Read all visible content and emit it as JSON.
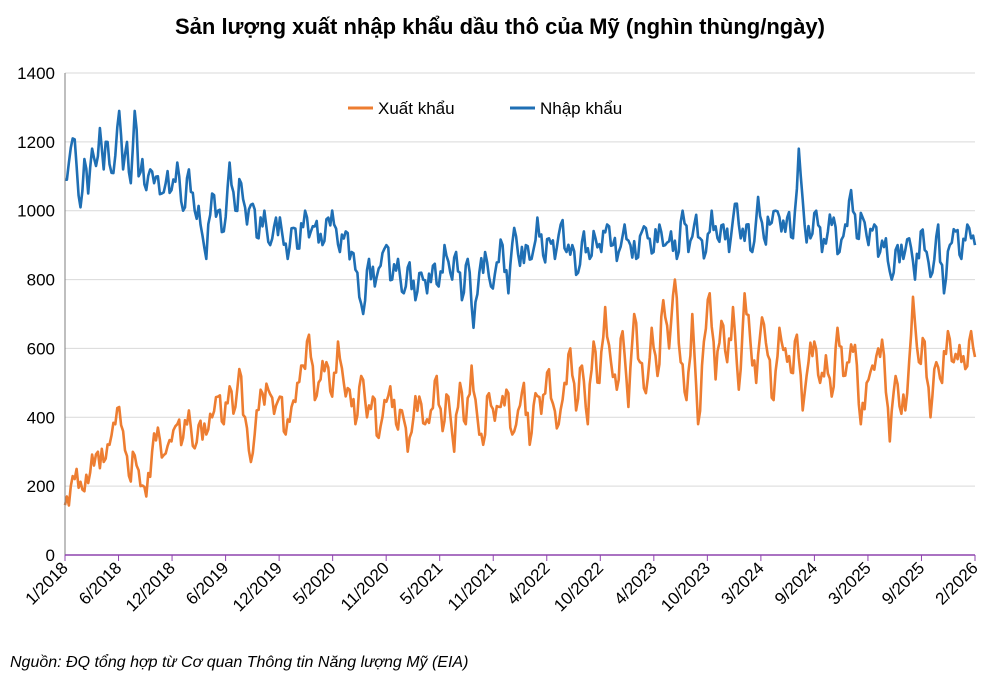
{
  "chart_data": {
    "type": "line",
    "title": "Sản lượng xuất nhập khẩu dầu thô của Mỹ (nghìn thùng/ngày)",
    "xlabel": "",
    "ylabel": "",
    "ylim": [
      0,
      1400
    ],
    "yticks": [
      "0",
      "200",
      "400",
      "600",
      "800",
      "1000",
      "1200",
      "1400"
    ],
    "x_tick_labels": [
      "1/2018",
      "6/2018",
      "12/2018",
      "6/2019",
      "12/2019",
      "5/2020",
      "11/2020",
      "5/2021",
      "11/2021",
      "4/2022",
      "10/2022",
      "4/2023",
      "10/2023",
      "3/2024",
      "9/2024",
      "3/2025",
      "9/2025",
      "2/2026"
    ],
    "grid": "horizontal",
    "legend_position": "top-center",
    "series_anchors": "week index (0 = first week of 1/2018, 423 = first week of 2/2026) paired with value in thousand barrels/day",
    "series": [
      {
        "name": "Xuất khẩu",
        "color": "#ED7D31",
        "anchors": [
          [
            0,
            145
          ],
          [
            3,
            200
          ],
          [
            6,
            250
          ],
          [
            9,
            190
          ],
          [
            13,
            240
          ],
          [
            17,
            300
          ],
          [
            20,
            270
          ],
          [
            23,
            320
          ],
          [
            26,
            380
          ],
          [
            28,
            430
          ],
          [
            30,
            360
          ],
          [
            33,
            230
          ],
          [
            36,
            290
          ],
          [
            39,
            200
          ],
          [
            42,
            170
          ],
          [
            45,
            300
          ],
          [
            48,
            370
          ],
          [
            51,
            290
          ],
          [
            55,
            330
          ],
          [
            58,
            380
          ],
          [
            61,
            340
          ],
          [
            64,
            420
          ],
          [
            67,
            310
          ],
          [
            70,
            390
          ],
          [
            73,
            350
          ],
          [
            76,
            400
          ],
          [
            79,
            460
          ],
          [
            82,
            380
          ],
          [
            85,
            490
          ],
          [
            88,
            430
          ],
          [
            90,
            540
          ],
          [
            93,
            400
          ],
          [
            96,
            270
          ],
          [
            99,
            420
          ],
          [
            102,
            470
          ],
          [
            105,
            480
          ],
          [
            108,
            410
          ],
          [
            111,
            460
          ],
          [
            114,
            350
          ],
          [
            117,
            430
          ],
          [
            120,
            500
          ],
          [
            123,
            550
          ],
          [
            126,
            640
          ],
          [
            129,
            450
          ],
          [
            132,
            510
          ],
          [
            135,
            560
          ],
          [
            138,
            460
          ],
          [
            141,
            620
          ],
          [
            144,
            500
          ],
          [
            147,
            480
          ],
          [
            150,
            380
          ],
          [
            153,
            520
          ],
          [
            156,
            400
          ],
          [
            159,
            460
          ],
          [
            162,
            340
          ],
          [
            165,
            450
          ],
          [
            168,
            490
          ],
          [
            171,
            380
          ],
          [
            174,
            420
          ],
          [
            177,
            300
          ],
          [
            180,
            400
          ],
          [
            183,
            460
          ],
          [
            186,
            380
          ],
          [
            189,
            420
          ],
          [
            192,
            520
          ],
          [
            195,
            360
          ],
          [
            198,
            460
          ],
          [
            201,
            300
          ],
          [
            204,
            500
          ],
          [
            207,
            380
          ],
          [
            210,
            550
          ],
          [
            213,
            400
          ],
          [
            216,
            320
          ],
          [
            219,
            470
          ],
          [
            222,
            390
          ],
          [
            225,
            430
          ],
          [
            228,
            480
          ],
          [
            231,
            350
          ],
          [
            234,
            420
          ],
          [
            237,
            500
          ],
          [
            240,
            320
          ],
          [
            243,
            470
          ],
          [
            246,
            410
          ],
          [
            249,
            530
          ],
          [
            252,
            440
          ],
          [
            255,
            380
          ],
          [
            258,
            500
          ],
          [
            261,
            600
          ],
          [
            264,
            420
          ],
          [
            267,
            550
          ],
          [
            270,
            380
          ],
          [
            273,
            620
          ],
          [
            276,
            500
          ],
          [
            279,
            720
          ],
          [
            282,
            560
          ],
          [
            285,
            480
          ],
          [
            288,
            650
          ],
          [
            291,
            430
          ],
          [
            294,
            700
          ],
          [
            297,
            560
          ],
          [
            300,
            470
          ],
          [
            303,
            660
          ],
          [
            306,
            520
          ],
          [
            309,
            740
          ],
          [
            312,
            600
          ],
          [
            315,
            800
          ],
          [
            318,
            560
          ],
          [
            321,
            450
          ],
          [
            324,
            700
          ],
          [
            327,
            380
          ],
          [
            330,
            620
          ],
          [
            333,
            760
          ],
          [
            336,
            510
          ],
          [
            339,
            680
          ],
          [
            342,
            560
          ],
          [
            345,
            720
          ],
          [
            348,
            480
          ],
          [
            351,
            760
          ],
          [
            354,
            620
          ],
          [
            357,
            500
          ],
          [
            360,
            690
          ],
          [
            363,
            580
          ],
          [
            366,
            450
          ],
          [
            369,
            660
          ],
          [
            372,
            600
          ],
          [
            375,
            530
          ],
          [
            378,
            640
          ],
          [
            381,
            420
          ],
          [
            384,
            560
          ],
          [
            387,
            620
          ],
          [
            390,
            500
          ],
          [
            393,
            580
          ],
          [
            396,
            460
          ],
          [
            399,
            660
          ],
          [
            402,
            520
          ],
          [
            405,
            560
          ],
          [
            408,
            610
          ],
          [
            411,
            380
          ],
          [
            414,
            500
          ],
          [
            417,
            550
          ],
          [
            420,
            600
          ],
          [
            423,
            580
          ],
          [
            426,
            330
          ],
          [
            429,
            520
          ],
          [
            432,
            410
          ],
          [
            435,
            470
          ],
          [
            438,
            750
          ],
          [
            441,
            560
          ],
          [
            444,
            620
          ],
          [
            447,
            400
          ],
          [
            450,
            560
          ],
          [
            453,
            500
          ],
          [
            456,
            650
          ],
          [
            459,
            560
          ],
          [
            462,
            610
          ],
          [
            465,
            540
          ],
          [
            468,
            650
          ],
          [
            470,
            575
          ]
        ]
      },
      {
        "name": "Nhập khẩu",
        "color": "#1F6FB4",
        "anchors": [
          [
            0,
            1090
          ],
          [
            2,
            1140
          ],
          [
            4,
            1210
          ],
          [
            6,
            1130
          ],
          [
            8,
            1010
          ],
          [
            10,
            1150
          ],
          [
            12,
            1050
          ],
          [
            14,
            1180
          ],
          [
            16,
            1130
          ],
          [
            18,
            1240
          ],
          [
            20,
            1120
          ],
          [
            22,
            1200
          ],
          [
            24,
            1110
          ],
          [
            26,
            1160
          ],
          [
            28,
            1290
          ],
          [
            30,
            1120
          ],
          [
            32,
            1200
          ],
          [
            34,
            1080
          ],
          [
            36,
            1290
          ],
          [
            38,
            1100
          ],
          [
            40,
            1150
          ],
          [
            42,
            1060
          ],
          [
            44,
            1120
          ],
          [
            46,
            1080
          ],
          [
            48,
            1100
          ],
          [
            50,
            1050
          ],
          [
            52,
            1080
          ],
          [
            55,
            1060
          ],
          [
            58,
            1140
          ],
          [
            61,
            1000
          ],
          [
            64,
            1120
          ],
          [
            67,
            1000
          ],
          [
            70,
            960
          ],
          [
            73,
            860
          ],
          [
            76,
            1050
          ],
          [
            79,
            1000
          ],
          [
            82,
            940
          ],
          [
            85,
            1140
          ],
          [
            88,
            1000
          ],
          [
            91,
            1080
          ],
          [
            94,
            960
          ],
          [
            97,
            1020
          ],
          [
            100,
            920
          ],
          [
            103,
            1000
          ],
          [
            106,
            900
          ],
          [
            109,
            980
          ],
          [
            112,
            940
          ],
          [
            115,
            860
          ],
          [
            118,
            950
          ],
          [
            121,
            890
          ],
          [
            124,
            1000
          ],
          [
            127,
            940
          ],
          [
            130,
            970
          ],
          [
            133,
            900
          ],
          [
            136,
            980
          ],
          [
            139,
            960
          ],
          [
            142,
            880
          ],
          [
            145,
            940
          ],
          [
            148,
            880
          ],
          [
            151,
            820
          ],
          [
            154,
            700
          ],
          [
            157,
            860
          ],
          [
            160,
            780
          ],
          [
            163,
            840
          ],
          [
            166,
            900
          ],
          [
            169,
            800
          ],
          [
            172,
            860
          ],
          [
            175,
            760
          ],
          [
            178,
            850
          ],
          [
            181,
            740
          ],
          [
            184,
            820
          ],
          [
            187,
            760
          ],
          [
            190,
            840
          ],
          [
            193,
            780
          ],
          [
            196,
            900
          ],
          [
            199,
            820
          ],
          [
            202,
            880
          ],
          [
            205,
            740
          ],
          [
            208,
            860
          ],
          [
            211,
            660
          ],
          [
            214,
            820
          ],
          [
            217,
            880
          ],
          [
            220,
            780
          ],
          [
            223,
            850
          ],
          [
            226,
            900
          ],
          [
            229,
            760
          ],
          [
            232,
            950
          ],
          [
            235,
            840
          ],
          [
            238,
            900
          ],
          [
            241,
            860
          ],
          [
            244,
            980
          ],
          [
            247,
            870
          ],
          [
            250,
            920
          ],
          [
            253,
            860
          ],
          [
            256,
            960
          ],
          [
            259,
            880
          ],
          [
            262,
            900
          ],
          [
            265,
            820
          ],
          [
            268,
            940
          ],
          [
            271,
            860
          ],
          [
            274,
            920
          ],
          [
            277,
            880
          ],
          [
            280,
            960
          ],
          [
            283,
            900
          ],
          [
            286,
            880
          ],
          [
            289,
            960
          ],
          [
            292,
            900
          ],
          [
            295,
            860
          ],
          [
            298,
            940
          ],
          [
            301,
            920
          ],
          [
            304,
            880
          ],
          [
            307,
            960
          ],
          [
            310,
            900
          ],
          [
            313,
            940
          ],
          [
            316,
            860
          ],
          [
            319,
            1000
          ],
          [
            322,
            880
          ],
          [
            325,
            960
          ],
          [
            328,
            920
          ],
          [
            331,
            880
          ],
          [
            334,
            1000
          ],
          [
            337,
            920
          ],
          [
            340,
            960
          ],
          [
            343,
            880
          ],
          [
            346,
            1020
          ],
          [
            349,
            920
          ],
          [
            352,
            960
          ],
          [
            355,
            880
          ],
          [
            358,
            1040
          ],
          [
            361,
            920
          ],
          [
            364,
            960
          ],
          [
            367,
            1000
          ],
          [
            370,
            940
          ],
          [
            373,
            980
          ],
          [
            376,
            920
          ],
          [
            379,
            1180
          ],
          [
            382,
            960
          ],
          [
            385,
            920
          ],
          [
            388,
            1000
          ],
          [
            391,
            880
          ],
          [
            394,
            940
          ],
          [
            397,
            980
          ],
          [
            400,
            880
          ],
          [
            403,
            960
          ],
          [
            406,
            1060
          ],
          [
            409,
            920
          ],
          [
            412,
            980
          ],
          [
            415,
            900
          ],
          [
            418,
            960
          ],
          [
            421,
            880
          ],
          [
            424,
            920
          ],
          [
            427,
            800
          ],
          [
            430,
            900
          ],
          [
            433,
            860
          ],
          [
            436,
            920
          ],
          [
            439,
            800
          ],
          [
            442,
            940
          ],
          [
            445,
            880
          ],
          [
            448,
            820
          ],
          [
            451,
            960
          ],
          [
            454,
            760
          ],
          [
            457,
            900
          ],
          [
            460,
            940
          ],
          [
            463,
            860
          ],
          [
            466,
            960
          ],
          [
            468,
            920
          ],
          [
            470,
            900
          ]
        ]
      }
    ]
  },
  "source_note": "Nguồn: ĐQ tổng hợp từ Cơ quan Thông tin Năng lượng Mỹ (EIA)"
}
